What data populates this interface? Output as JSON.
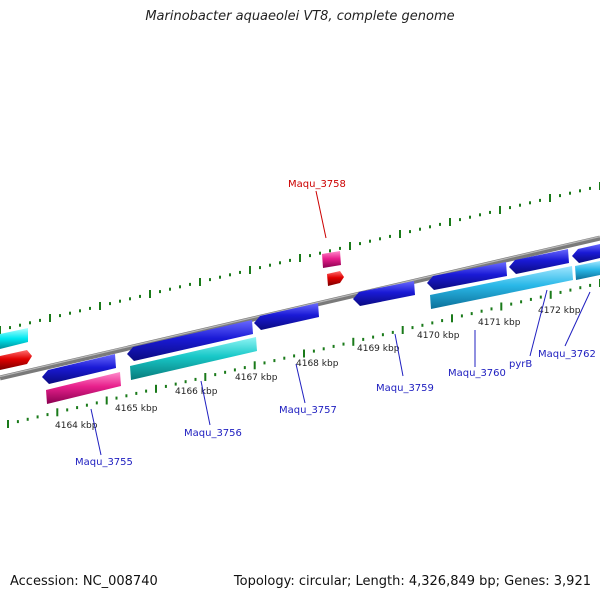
{
  "title": "Marinobacter aquaeolei VT8, complete genome",
  "footer": {
    "accession": "Accession: NC_008740",
    "topology": "Topology: circular; Length: 4,326,849 bp; Genes: 3,921"
  },
  "axis": {
    "unit": "kbp",
    "ticks": [
      "4164 kbp",
      "4165 kbp",
      "4166 kbp",
      "4167 kbp",
      "4168 kbp",
      "4169 kbp",
      "4170 kbp",
      "4171 kbp",
      "4172 kbp"
    ]
  },
  "genes": [
    {
      "name": "Maqu_3755",
      "color": "#2222cc"
    },
    {
      "name": "Maqu_3756",
      "color": "#2222cc"
    },
    {
      "name": "Maqu_3757",
      "color": "#2222cc"
    },
    {
      "name": "Maqu_3758",
      "color": "#cc0000"
    },
    {
      "name": "Maqu_3759",
      "color": "#2222cc"
    },
    {
      "name": "Maqu_3760",
      "color": "#2222cc"
    },
    {
      "name": "pyrB",
      "color": "#2222cc"
    },
    {
      "name": "Maqu_3762",
      "color": "#2222cc"
    }
  ],
  "colors": {
    "backbone": "#8a8a8a",
    "cds_forward": "#1a1ad6",
    "cds_reverse": "#2ab8e8",
    "rna": "#e8208c",
    "pseudo_red": "#e00000",
    "tick_mark": "#1a7a1a"
  }
}
